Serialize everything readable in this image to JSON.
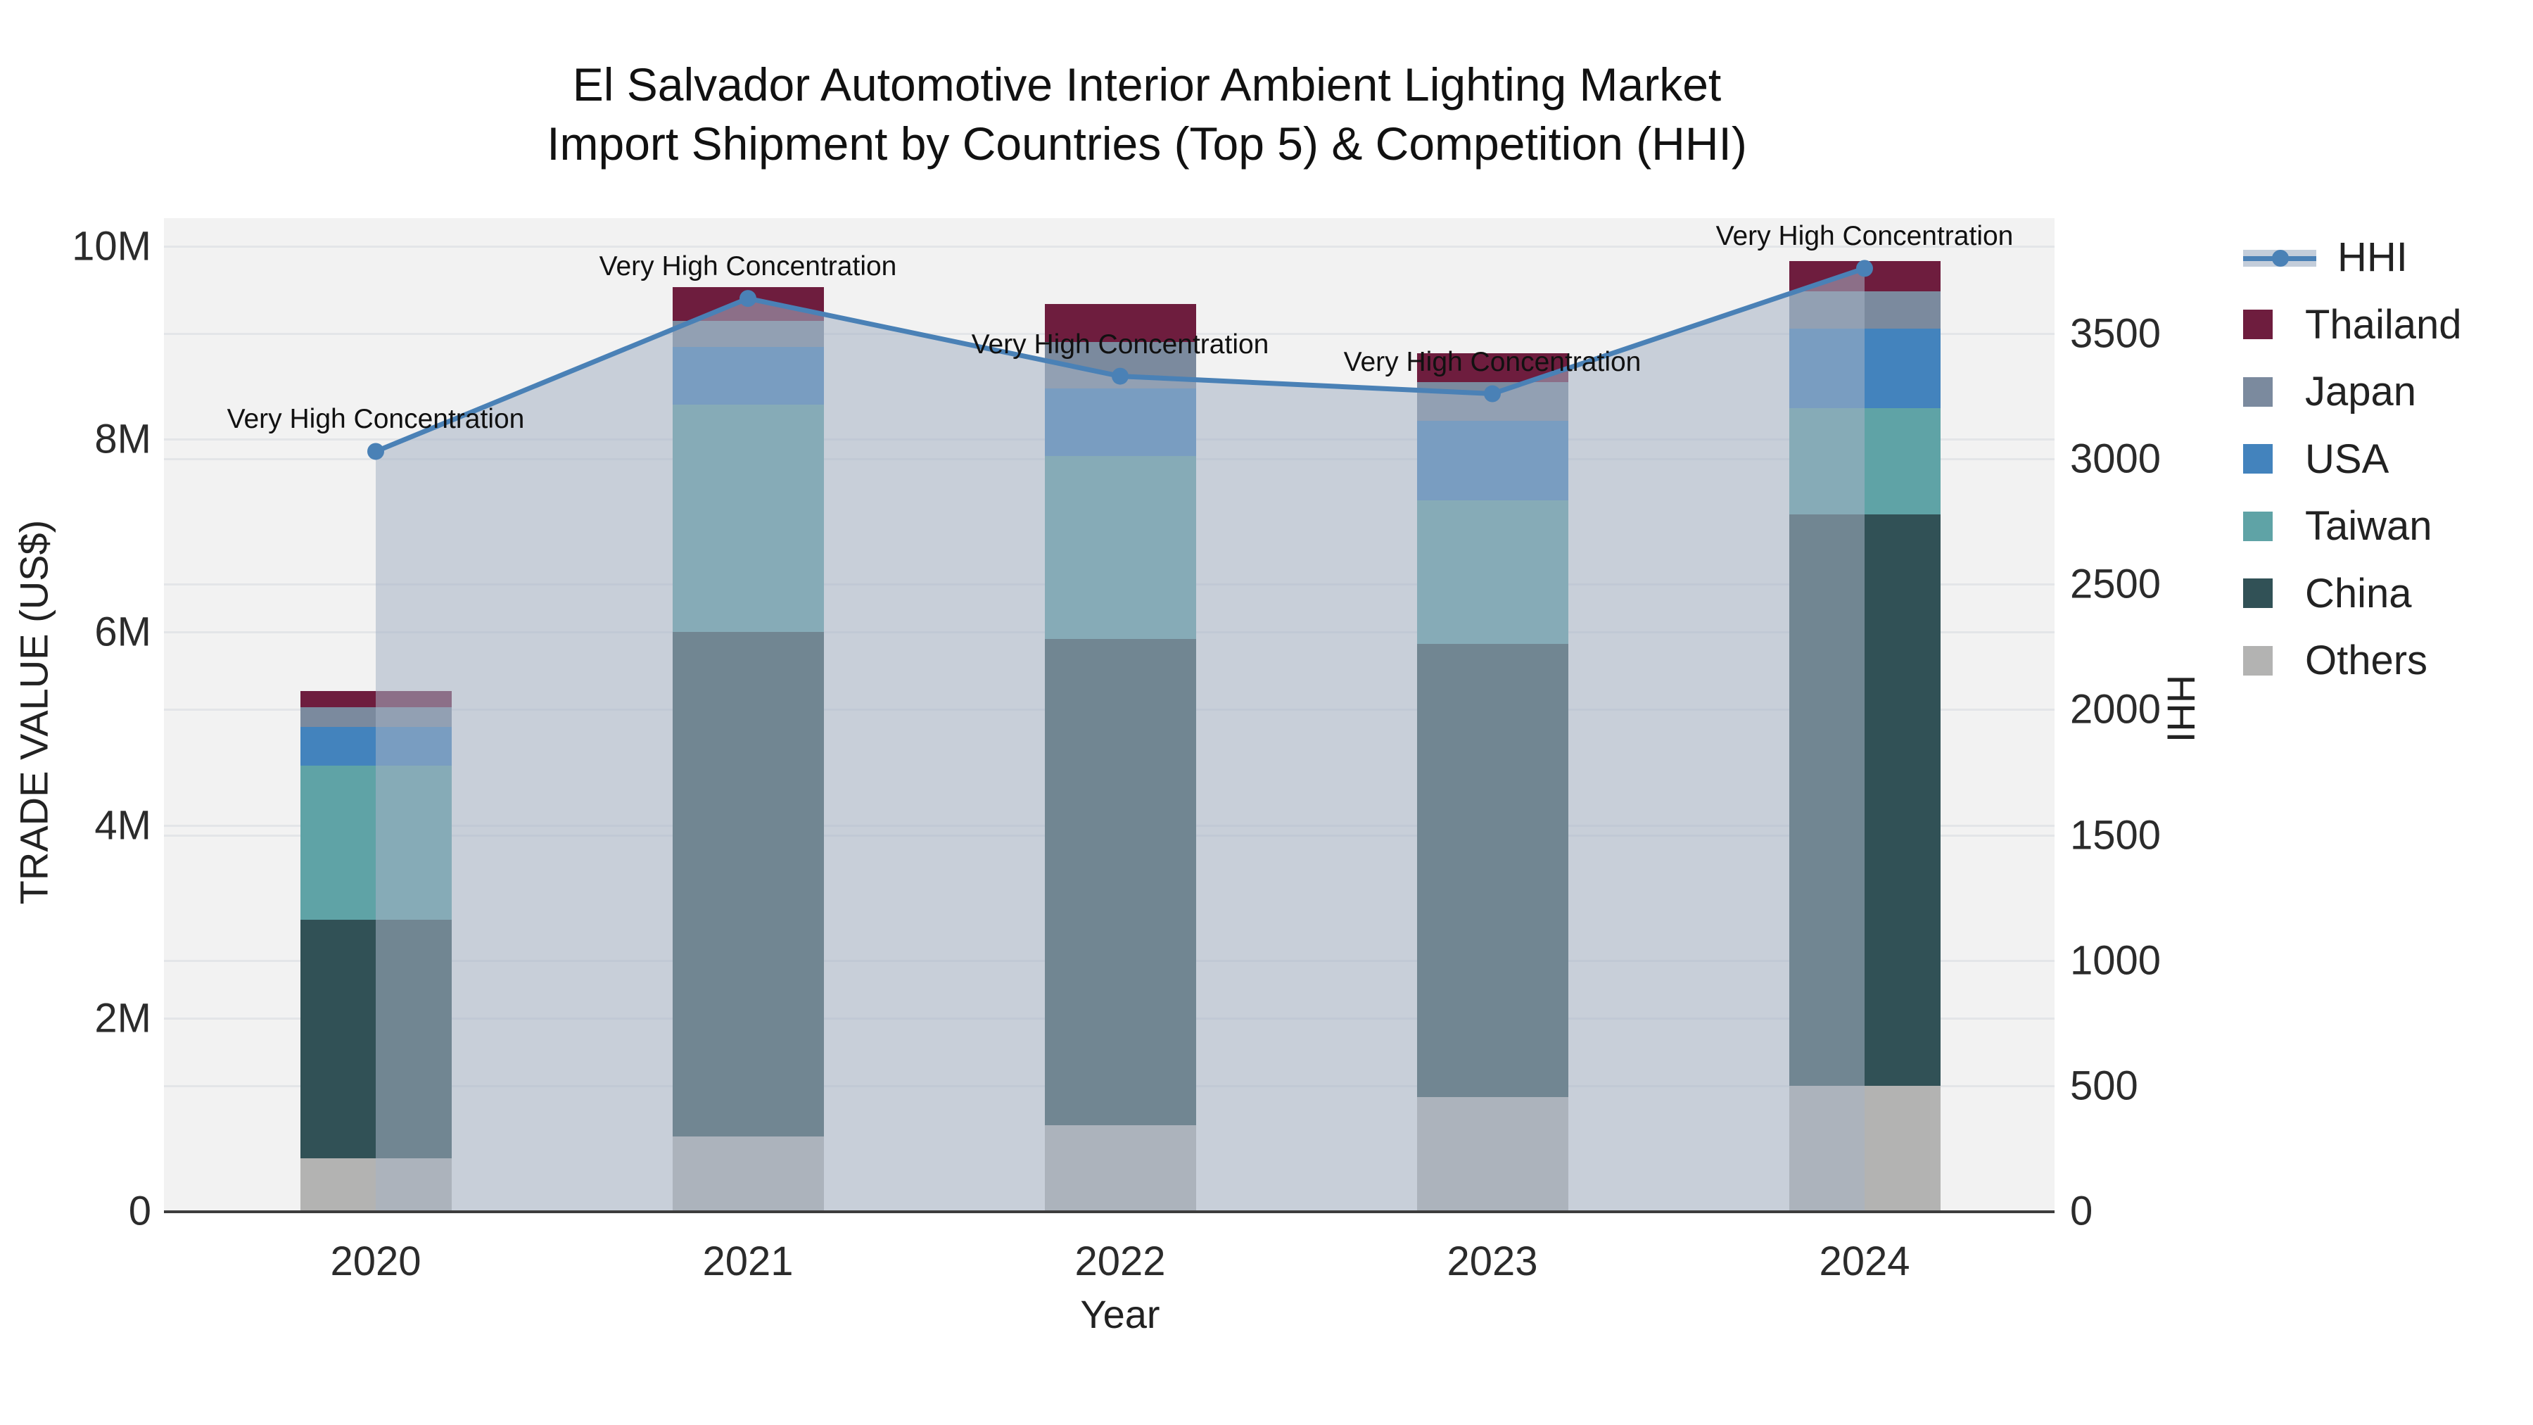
{
  "title": {
    "line1": "El Salvador Automotive Interior Ambient Lighting Market",
    "line2": "Import Shipment by Countries (Top 5) & Competition (HHI)"
  },
  "axes": {
    "x": {
      "title": "Year",
      "ticks": [
        "2020",
        "2021",
        "2022",
        "2023",
        "2024"
      ]
    },
    "y_left": {
      "title": "TRADE VALUE (US$)",
      "ticks": [
        "0",
        "2M",
        "4M",
        "6M",
        "8M",
        "10M"
      ],
      "tick_values_musd": [
        0,
        2,
        4,
        6,
        8,
        10
      ]
    },
    "y_right": {
      "title": "HHI",
      "ticks": [
        "0",
        "500",
        "1000",
        "1500",
        "2000",
        "2500",
        "3000",
        "3500"
      ],
      "tick_values": [
        0,
        500,
        1000,
        1500,
        2000,
        2500,
        3000,
        3500
      ]
    }
  },
  "legend": {
    "items": [
      {
        "label": "HHI",
        "kind": "line",
        "color": "#4a81b6"
      },
      {
        "label": "Thailand",
        "kind": "swatch",
        "color": "#6e1d3e"
      },
      {
        "label": "Japan",
        "kind": "swatch",
        "color": "#7b8a9e"
      },
      {
        "label": "USA",
        "kind": "swatch",
        "color": "#4383bd"
      },
      {
        "label": "Taiwan",
        "kind": "swatch",
        "color": "#5fa3a6"
      },
      {
        "label": "China",
        "kind": "swatch",
        "color": "#315156"
      },
      {
        "label": "Others",
        "kind": "swatch",
        "color": "#b3b3b2"
      }
    ]
  },
  "annotation_text": "Very High Concentration",
  "colors": {
    "plot_background": "#f2f2f2",
    "gridline": "#e3e5e8",
    "axis_line": "#3d3d3d",
    "hhi_line": "#4a81b6",
    "hhi_area_fill": "rgba(166,179,197,0.55)"
  },
  "chart_data": {
    "type": "combo",
    "subtypes": [
      "stacked-bar",
      "line-area"
    ],
    "title": "El Salvador Automotive Interior Ambient Lighting Market — Import Shipment by Countries (Top 5) & Competition (HHI)",
    "categories": [
      "2020",
      "2021",
      "2022",
      "2023",
      "2024"
    ],
    "xlabel": "Year",
    "ylabel_left": "TRADE VALUE (US$)",
    "ylabel_right": "HHI",
    "ylim_left_musd": [
      0,
      10.3
    ],
    "ylim_right": [
      0,
      3960
    ],
    "grid": true,
    "legend_position": "right",
    "bar_unit": "million US$",
    "stack_order_bottom_to_top": [
      "Others",
      "China",
      "Taiwan",
      "USA",
      "Japan",
      "Thailand"
    ],
    "series": [
      {
        "name": "Others",
        "type": "bar",
        "color": "#b3b3b2",
        "values_musd": [
          0.55,
          0.77,
          0.89,
          1.18,
          1.3
        ]
      },
      {
        "name": "China",
        "type": "bar",
        "color": "#315156",
        "values_musd": [
          2.47,
          5.23,
          5.04,
          4.7,
          5.92
        ]
      },
      {
        "name": "Taiwan",
        "type": "bar",
        "color": "#5fa3a6",
        "values_musd": [
          1.6,
          2.36,
          1.9,
          1.49,
          1.1
        ]
      },
      {
        "name": "USA",
        "type": "bar",
        "color": "#4383bd",
        "values_musd": [
          0.4,
          0.6,
          0.7,
          0.82,
          0.83
        ]
      },
      {
        "name": "Japan",
        "type": "bar",
        "color": "#7b8a9e",
        "values_musd": [
          0.2,
          0.27,
          0.48,
          0.4,
          0.38
        ]
      },
      {
        "name": "Thailand",
        "type": "bar",
        "color": "#6e1d3e",
        "values_musd": [
          0.17,
          0.35,
          0.39,
          0.3,
          0.32
        ]
      },
      {
        "name": "HHI",
        "type": "line",
        "color": "#4a81b6",
        "area_fill": "rgba(166,179,197,0.55)",
        "values": [
          3030,
          3640,
          3330,
          3260,
          3760
        ]
      }
    ],
    "bar_totals_musd": [
      5.39,
      9.58,
      9.4,
      8.88,
      9.85
    ],
    "annotations": [
      {
        "x": "2020",
        "hhi": 3030,
        "text": "Very High Concentration"
      },
      {
        "x": "2021",
        "hhi": 3640,
        "text": "Very High Concentration"
      },
      {
        "x": "2022",
        "hhi": 3330,
        "text": "Very High Concentration"
      },
      {
        "x": "2023",
        "hhi": 3260,
        "text": "Very High Concentration"
      },
      {
        "x": "2024",
        "hhi": 3760,
        "text": "Very High Concentration"
      }
    ]
  }
}
